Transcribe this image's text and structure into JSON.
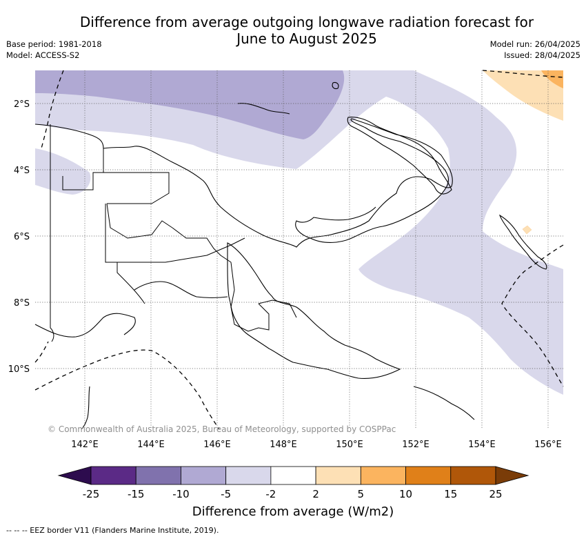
{
  "header": {
    "title_line1": "Difference from average outgoing longwave radiation forecast for",
    "title_line2": "June to August 2025",
    "base_period": "Base period: 1981-2018",
    "model": "Model: ACCESS-S2",
    "model_run": "Model run: 26/04/2025",
    "issued": "Issued: 28/04/2025"
  },
  "map": {
    "lat_labels": [
      "2°S",
      "4°S",
      "6°S",
      "8°S",
      "10°S"
    ],
    "lon_labels": [
      "142°E",
      "144°E",
      "146°E",
      "148°E",
      "150°E",
      "152°E",
      "154°E",
      "156°E"
    ],
    "copyright": "© Commonwealth of Australia 2025, Bureau of Meteorology, supported by COSPPac"
  },
  "legend": {
    "tick_labels": [
      "-25",
      "-15",
      "-10",
      "-5",
      "-2",
      "2",
      "5",
      "10",
      "15",
      "25"
    ],
    "colors": [
      "#2d0c4e",
      "#5b2a86",
      "#8072ad",
      "#b0a9d3",
      "#d9d8eb",
      "#ffffff",
      "#fde0b5",
      "#fbb45f",
      "#e08019",
      "#b05709",
      "#7a3c08"
    ],
    "title": "Difference from average (W/m2)"
  },
  "footnote": "--  --  -- EEZ border V11 (Flanders Marine Institute, 2019)."
}
